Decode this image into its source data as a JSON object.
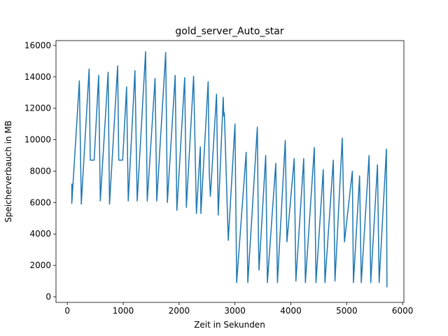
{
  "chart_data": {
    "type": "line",
    "title": "gold_server_Auto_star",
    "xlabel": "Zeit in Sekunden",
    "ylabel": "Speicherverbauch in MB",
    "xlim": [
      -203,
      6023
    ],
    "ylim": [
      -357,
      16310
    ],
    "xticks": [
      0,
      1000,
      2000,
      3000,
      4000,
      5000,
      6000
    ],
    "yticks": [
      0,
      2000,
      4000,
      6000,
      8000,
      10000,
      12000,
      14000,
      16000
    ],
    "series": [
      {
        "color": "#1f77b4",
        "x": [
          80,
          80,
          215,
          250,
          390,
          410,
          480,
          560,
          590,
          730,
          755,
          900,
          920,
          990,
          1060,
          1090,
          1210,
          1250,
          1400,
          1430,
          1570,
          1600,
          1760,
          1790,
          1930,
          1960,
          2100,
          2130,
          2260,
          2310,
          2380,
          2390,
          2520,
          2540,
          2560,
          2670,
          2700,
          2790,
          2800,
          2810,
          2880,
          3000,
          3030,
          3200,
          3230,
          3400,
          3420,
          3430,
          3550,
          3580,
          3730,
          3760,
          3900,
          3930,
          4060,
          4090,
          4230,
          4260,
          4420,
          4450,
          4580,
          4610,
          4760,
          4790,
          4920,
          4960,
          5100,
          5120,
          5230,
          5260,
          5400,
          5430,
          5550,
          5580,
          5710,
          5720
        ],
        "values": [
          7200,
          5950,
          13750,
          5900,
          14500,
          8700,
          8700,
          14100,
          6100,
          14300,
          5900,
          14700,
          8700,
          8700,
          13350,
          6100,
          14400,
          6100,
          15600,
          6100,
          13900,
          6100,
          15550,
          6000,
          14100,
          5500,
          13950,
          5700,
          14050,
          5300,
          9550,
          5300,
          13700,
          7900,
          6400,
          12900,
          5200,
          12700,
          11500,
          11700,
          3600,
          11000,
          900,
          9200,
          900,
          10800,
          3700,
          1700,
          9000,
          900,
          8500,
          900,
          9950,
          3500,
          8800,
          1000,
          8800,
          900,
          9500,
          900,
          8100,
          900,
          8700,
          1000,
          10100,
          3500,
          8000,
          900,
          7700,
          900,
          9000,
          900,
          8400,
          900,
          9400,
          600
        ]
      }
    ]
  }
}
